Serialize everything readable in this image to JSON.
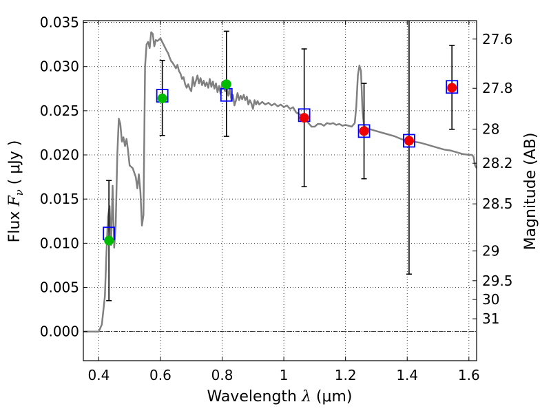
{
  "chart_data": {
    "type": "line",
    "xlabel": {
      "prefix": "Wavelength  ",
      "symbol": "λ",
      "units": " (μm)"
    },
    "ylabel": {
      "prefix": "Flux  ",
      "symbol": "F",
      "subscript": "ν",
      "units": "  ( μJy )"
    },
    "ylabel_right": "Magnitude (AB)",
    "xlim": [
      0.35,
      1.625
    ],
    "ylim": [
      -0.0033,
      0.0352
    ],
    "x_ticks": [
      0.4,
      0.6,
      0.8,
      1.0,
      1.2,
      1.4,
      1.6
    ],
    "x_tick_labels": [
      "0.4",
      "0.6",
      "0.8",
      "1",
      "1.2",
      "1.4",
      "1.6"
    ],
    "y_ticks": [
      0.0,
      0.005,
      0.01,
      0.015,
      0.02,
      0.025,
      0.03,
      0.035
    ],
    "y_tick_labels": [
      "0.000",
      "0.005",
      "0.010",
      "0.015",
      "0.020",
      "0.025",
      "0.030",
      "0.035"
    ],
    "mag_ticks": [
      27.6,
      27.8,
      28.0,
      28.2,
      28.5,
      29.0,
      29.5,
      30.0,
      31.0
    ],
    "mag_tick_labels": [
      "27.6",
      "27.8",
      "28",
      "28.2",
      "28.5",
      "29",
      "29.5",
      "30",
      "31"
    ],
    "grid": true,
    "zero_line": true,
    "colors": {
      "model": "#808080",
      "observed_green": "#00bb00",
      "observed_red": "#ee0000",
      "model_box": "#0000ff",
      "error": "#000000"
    },
    "model_spectrum": [
      [
        0.35,
        0.0
      ],
      [
        0.4,
        0.0
      ],
      [
        0.41,
        0.0008
      ],
      [
        0.42,
        0.004
      ],
      [
        0.425,
        0.009
      ],
      [
        0.43,
        0.013
      ],
      [
        0.435,
        0.0142
      ],
      [
        0.44,
        0.0098
      ],
      [
        0.445,
        0.0165
      ],
      [
        0.45,
        0.0095
      ],
      [
        0.455,
        0.012
      ],
      [
        0.46,
        0.02
      ],
      [
        0.465,
        0.0241
      ],
      [
        0.47,
        0.0235
      ],
      [
        0.475,
        0.0215
      ],
      [
        0.48,
        0.022
      ],
      [
        0.485,
        0.021
      ],
      [
        0.49,
        0.0218
      ],
      [
        0.495,
        0.0205
      ],
      [
        0.5,
        0.0188
      ],
      [
        0.51,
        0.0185
      ],
      [
        0.52,
        0.0175
      ],
      [
        0.525,
        0.0162
      ],
      [
        0.53,
        0.0178
      ],
      [
        0.535,
        0.0158
      ],
      [
        0.54,
        0.012
      ],
      [
        0.545,
        0.0132
      ],
      [
        0.55,
        0.03
      ],
      [
        0.555,
        0.0325
      ],
      [
        0.56,
        0.0328
      ],
      [
        0.565,
        0.0321
      ],
      [
        0.57,
        0.0339
      ],
      [
        0.575,
        0.0337
      ],
      [
        0.58,
        0.0323
      ],
      [
        0.585,
        0.033
      ],
      [
        0.59,
        0.0329
      ],
      [
        0.6,
        0.0332
      ],
      [
        0.61,
        0.0325
      ],
      [
        0.62,
        0.0318
      ],
      [
        0.625,
        0.0315
      ],
      [
        0.63,
        0.031
      ],
      [
        0.635,
        0.0306
      ],
      [
        0.64,
        0.0304
      ],
      [
        0.645,
        0.0301
      ],
      [
        0.65,
        0.0298
      ],
      [
        0.655,
        0.0302
      ],
      [
        0.66,
        0.0295
      ],
      [
        0.665,
        0.0292
      ],
      [
        0.67,
        0.0286
      ],
      [
        0.675,
        0.0288
      ],
      [
        0.68,
        0.028
      ],
      [
        0.685,
        0.0276
      ],
      [
        0.69,
        0.028
      ],
      [
        0.695,
        0.0275
      ],
      [
        0.7,
        0.0272
      ],
      [
        0.705,
        0.0288
      ],
      [
        0.71,
        0.0278
      ],
      [
        0.715,
        0.0284
      ],
      [
        0.72,
        0.029
      ],
      [
        0.725,
        0.0281
      ],
      [
        0.73,
        0.0287
      ],
      [
        0.735,
        0.0279
      ],
      [
        0.74,
        0.0284
      ],
      [
        0.745,
        0.0278
      ],
      [
        0.75,
        0.0282
      ],
      [
        0.755,
        0.0276
      ],
      [
        0.76,
        0.0286
      ],
      [
        0.765,
        0.0277
      ],
      [
        0.77,
        0.0283
      ],
      [
        0.775,
        0.0275
      ],
      [
        0.78,
        0.0281
      ],
      [
        0.785,
        0.0271
      ],
      [
        0.79,
        0.0278
      ],
      [
        0.795,
        0.0269
      ],
      [
        0.8,
        0.0282
      ],
      [
        0.805,
        0.0276
      ],
      [
        0.81,
        0.0272
      ],
      [
        0.815,
        0.0277
      ],
      [
        0.82,
        0.0267
      ],
      [
        0.825,
        0.0274
      ],
      [
        0.83,
        0.0262
      ],
      [
        0.835,
        0.0268
      ],
      [
        0.84,
        0.0256
      ],
      [
        0.845,
        0.0262
      ],
      [
        0.85,
        0.027
      ],
      [
        0.855,
        0.0262
      ],
      [
        0.86,
        0.0267
      ],
      [
        0.865,
        0.0263
      ],
      [
        0.87,
        0.0268
      ],
      [
        0.875,
        0.0262
      ],
      [
        0.88,
        0.0266
      ],
      [
        0.885,
        0.0257
      ],
      [
        0.89,
        0.0262
      ],
      [
        0.895,
        0.0258
      ],
      [
        0.9,
        0.0252
      ],
      [
        0.905,
        0.0262
      ],
      [
        0.91,
        0.0257
      ],
      [
        0.915,
        0.0261
      ],
      [
        0.92,
        0.0257
      ],
      [
        0.93,
        0.026
      ],
      [
        0.94,
        0.0257
      ],
      [
        0.95,
        0.0259
      ],
      [
        0.96,
        0.0256
      ],
      [
        0.97,
        0.0258
      ],
      [
        0.98,
        0.0255
      ],
      [
        0.99,
        0.0257
      ],
      [
        1.0,
        0.0254
      ],
      [
        1.01,
        0.0256
      ],
      [
        1.02,
        0.0252
      ],
      [
        1.03,
        0.0254
      ],
      [
        1.04,
        0.0248
      ],
      [
        1.05,
        0.0246
      ],
      [
        1.06,
        0.0245
      ],
      [
        1.07,
        0.024
      ],
      [
        1.08,
        0.0236
      ],
      [
        1.09,
        0.0232
      ],
      [
        1.1,
        0.0232
      ],
      [
        1.11,
        0.0235
      ],
      [
        1.12,
        0.0235
      ],
      [
        1.13,
        0.0233
      ],
      [
        1.14,
        0.0236
      ],
      [
        1.15,
        0.0235
      ],
      [
        1.16,
        0.0236
      ],
      [
        1.17,
        0.0234
      ],
      [
        1.18,
        0.0235
      ],
      [
        1.19,
        0.0233
      ],
      [
        1.2,
        0.0234
      ],
      [
        1.21,
        0.0233
      ],
      [
        1.22,
        0.0232
      ],
      [
        1.23,
        0.0236
      ],
      [
        1.235,
        0.0255
      ],
      [
        1.24,
        0.029
      ],
      [
        1.245,
        0.0301
      ],
      [
        1.25,
        0.0295
      ],
      [
        1.255,
        0.025
      ],
      [
        1.26,
        0.0233
      ],
      [
        1.27,
        0.023
      ],
      [
        1.28,
        0.0229
      ],
      [
        1.3,
        0.0227
      ],
      [
        1.32,
        0.0225
      ],
      [
        1.34,
        0.0223
      ],
      [
        1.36,
        0.0221
      ],
      [
        1.38,
        0.0218
      ],
      [
        1.4,
        0.0216
      ],
      [
        1.42,
        0.0215
      ],
      [
        1.44,
        0.0214
      ],
      [
        1.46,
        0.0212
      ],
      [
        1.48,
        0.021
      ],
      [
        1.5,
        0.0208
      ],
      [
        1.52,
        0.0206
      ],
      [
        1.54,
        0.0205
      ],
      [
        1.56,
        0.0203
      ],
      [
        1.58,
        0.0201
      ],
      [
        1.6,
        0.02
      ],
      [
        1.61,
        0.02
      ],
      [
        1.615,
        0.0198
      ],
      [
        1.62,
        0.0188
      ],
      [
        1.625,
        0.0185
      ]
    ],
    "model_boxes": [
      {
        "x": 0.433,
        "y": 0.0111
      },
      {
        "x": 0.606,
        "y": 0.0267
      },
      {
        "x": 0.814,
        "y": 0.0268
      },
      {
        "x": 1.066,
        "y": 0.0245
      },
      {
        "x": 1.26,
        "y": 0.0227
      },
      {
        "x": 1.406,
        "y": 0.0216
      },
      {
        "x": 1.545,
        "y": 0.0277
      }
    ],
    "observations": [
      {
        "x": 0.433,
        "y": 0.0103,
        "err_low": 0.0035,
        "err_high": 0.0171,
        "band": "green"
      },
      {
        "x": 0.606,
        "y": 0.0264,
        "err_low": 0.0222,
        "err_high": 0.0307,
        "band": "green"
      },
      {
        "x": 0.814,
        "y": 0.028,
        "err_low": 0.0221,
        "err_high": 0.034,
        "band": "green"
      },
      {
        "x": 1.066,
        "y": 0.0242,
        "err_low": 0.0164,
        "err_high": 0.032,
        "band": "red"
      },
      {
        "x": 1.26,
        "y": 0.0227,
        "err_low": 0.0173,
        "err_high": 0.0281,
        "band": "red"
      },
      {
        "x": 1.406,
        "y": 0.0216,
        "err_low": 0.0065,
        "err_high": 0.0352,
        "band": "red"
      },
      {
        "x": 1.545,
        "y": 0.0276,
        "err_low": 0.0229,
        "err_high": 0.0324,
        "band": "red"
      }
    ]
  }
}
